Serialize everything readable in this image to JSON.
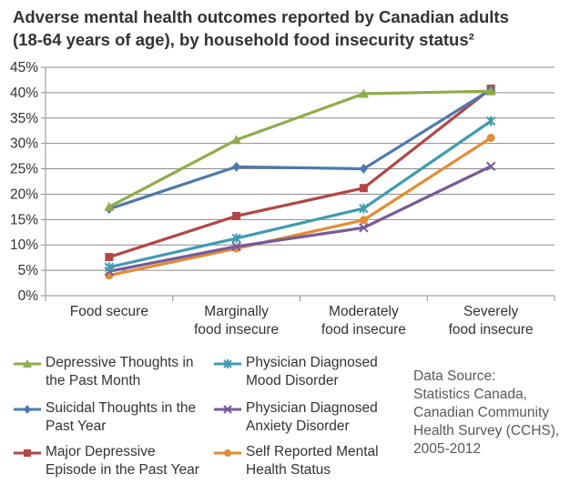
{
  "title": "Adverse mental health outcomes reported by Canadian adults\n(18-64 years of age), by household food insecurity status²",
  "source": "Data Source:\nStatistics Canada,\nCanadian Community\nHealth Survey (CCHS),\n2005-2012",
  "chart_data": {
    "type": "line",
    "categories": [
      "Food secure",
      "Marginally\nfood insecure",
      "Moderately\nfood insecure",
      "Severely\nfood insecure"
    ],
    "y_ticks": [
      "0%",
      "5%",
      "10%",
      "15%",
      "20%",
      "25%",
      "30%",
      "35%",
      "40%",
      "45%"
    ],
    "ylim": [
      0,
      45
    ],
    "grid": "horizontal",
    "legend_position": "bottom",
    "series": [
      {
        "name": "Depressive Thoughts in\nthe Past Month",
        "color": "#8fac4a",
        "marker": "triangle",
        "values": [
          17.5,
          30.7,
          39.8,
          40.3
        ]
      },
      {
        "name": "Suicidal Thoughts in the\nPast Year",
        "color": "#4f79ad",
        "marker": "diamond",
        "values": [
          17.1,
          25.4,
          25.0,
          40.6
        ]
      },
      {
        "name": "Major Depressive\nEpisode in the Past Year",
        "color": "#b24746",
        "marker": "square",
        "values": [
          7.6,
          15.7,
          21.2,
          40.8
        ]
      },
      {
        "name": "Physician Diagnosed\nMood Disorder",
        "color": "#3f9bb0",
        "marker": "star",
        "values": [
          5.6,
          11.3,
          17.2,
          34.4
        ]
      },
      {
        "name": "Physician Diagnosed\nAnxiety Disorder",
        "color": "#775a99",
        "marker": "x",
        "values": [
          4.8,
          9.7,
          13.4,
          25.5
        ]
      },
      {
        "name": "Self Reported Mental\nHealth Status",
        "color": "#e38c35",
        "marker": "circle",
        "values": [
          4.0,
          9.3,
          14.9,
          31.1
        ]
      }
    ]
  }
}
